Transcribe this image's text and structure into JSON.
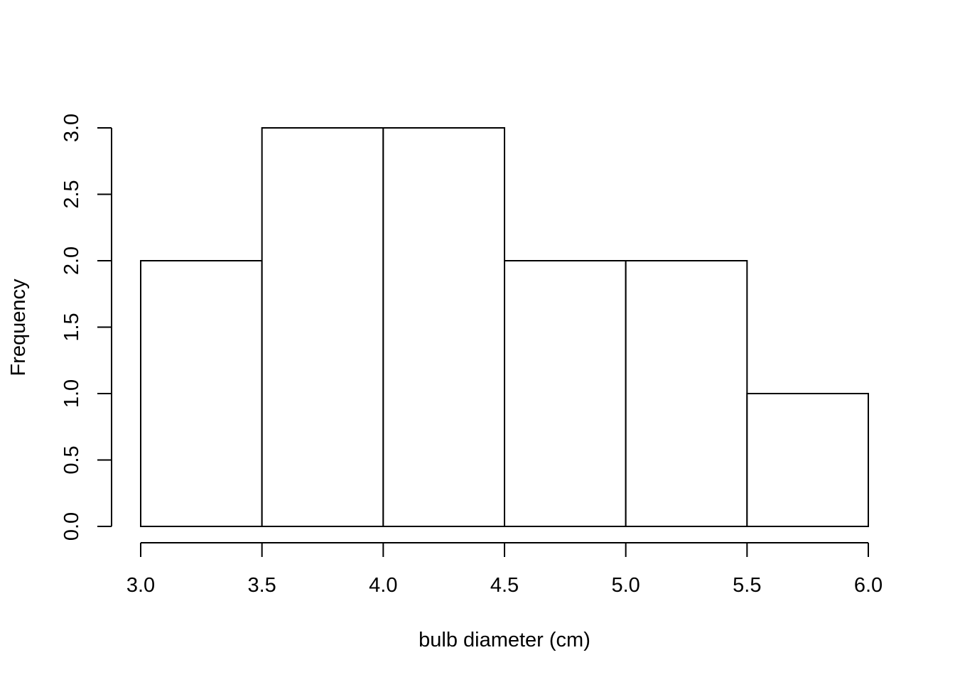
{
  "chart_data": {
    "type": "bar",
    "title": "",
    "xlabel": "bulb diameter (cm)",
    "ylabel": "Frequency",
    "bins": [
      {
        "start": 3.0,
        "end": 3.5,
        "count": 2
      },
      {
        "start": 3.5,
        "end": 4.0,
        "count": 3
      },
      {
        "start": 4.0,
        "end": 4.5,
        "count": 3
      },
      {
        "start": 4.5,
        "end": 5.0,
        "count": 2
      },
      {
        "start": 5.0,
        "end": 5.5,
        "count": 2
      },
      {
        "start": 5.5,
        "end": 6.0,
        "count": 1
      }
    ],
    "xlim": [
      3.0,
      6.0
    ],
    "ylim": [
      0,
      3.0
    ],
    "x_ticks": [
      "3.0",
      "3.5",
      "4.0",
      "4.5",
      "5.0",
      "5.5",
      "6.0"
    ],
    "y_ticks": [
      "0.0",
      "0.5",
      "1.0",
      "1.5",
      "2.0",
      "2.5",
      "3.0"
    ],
    "grid": false,
    "bar_fill": "#ffffff",
    "bar_stroke": "#000000"
  }
}
